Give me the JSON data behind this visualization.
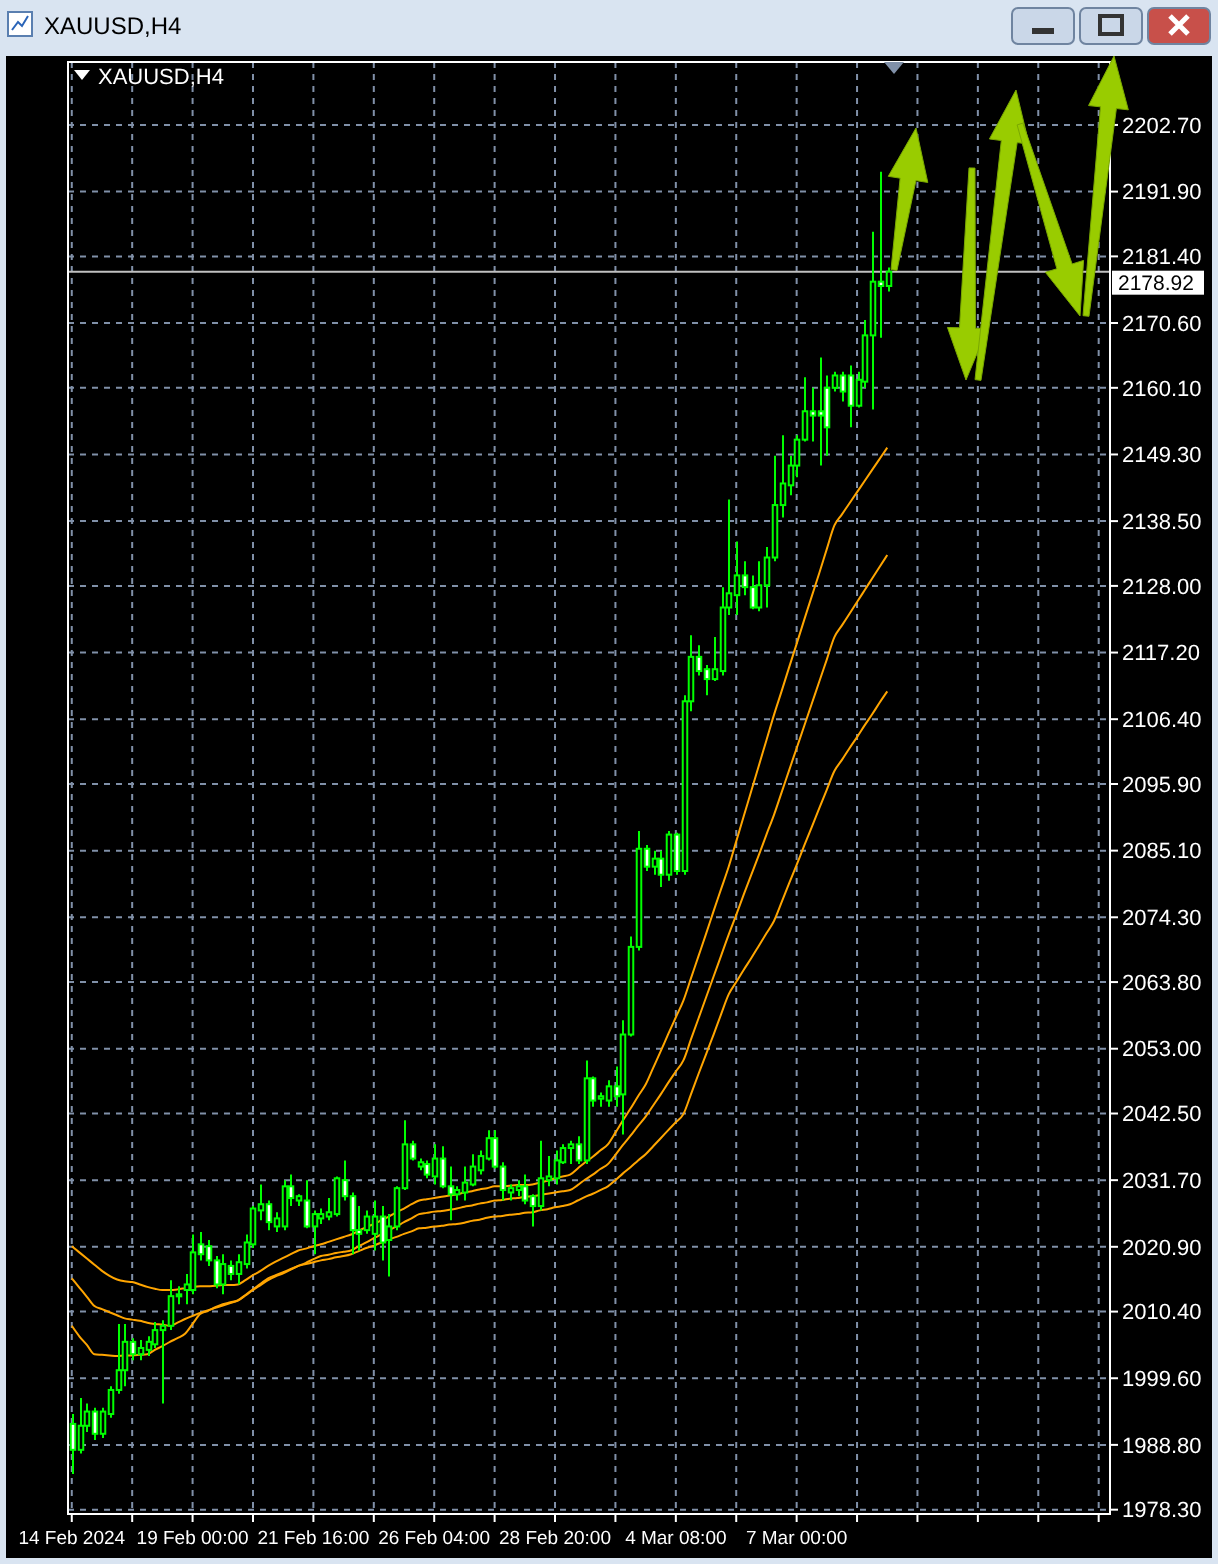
{
  "chart_data": {
    "type": "candlestick",
    "title": "XAUUSD,H4",
    "color": "#00ff00",
    "grid": true,
    "categories": [
      "14 Feb 2024",
      null,
      null,
      null,
      null,
      null,
      null,
      null,
      null,
      null,
      null,
      null,
      null,
      null,
      null,
      null,
      "19 Feb 00:00",
      null,
      null,
      null,
      null,
      null,
      null,
      null,
      null,
      null,
      null,
      null,
      null,
      null,
      null,
      null,
      "21 Feb 16:00",
      null,
      null,
      null,
      null,
      null,
      null,
      null,
      null,
      null,
      null,
      null,
      null,
      null,
      null,
      null,
      "26 Feb 04:00",
      null,
      null,
      null,
      null,
      null,
      null,
      null,
      null,
      null,
      null,
      null,
      null,
      null,
      null,
      null,
      "28 Feb 20:00",
      null,
      null,
      null,
      null,
      null,
      null,
      null,
      null,
      null,
      null,
      null,
      null,
      null,
      null,
      null,
      "4 Mar 08:00",
      null,
      null,
      null,
      null,
      null,
      null,
      null,
      null,
      null,
      null,
      null,
      null,
      null,
      null,
      null,
      "7 Mar 00:00",
      null,
      null,
      null,
      null,
      null,
      null,
      null,
      null,
      null,
      null,
      null,
      null
    ],
    "ylim": [
      1977.6,
      2212.9
    ],
    "yticks": [
      {
        "value": 1978.3,
        "label": "1978.30"
      },
      {
        "value": 1988.8,
        "label": "1988.80"
      },
      {
        "value": 1999.6,
        "label": "1999.60"
      },
      {
        "value": 2010.4,
        "label": "2010.40"
      },
      {
        "value": 2020.9,
        "label": "2020.90"
      },
      {
        "value": 2031.7,
        "label": "2031.70"
      },
      {
        "value": 2042.5,
        "label": "2042.50"
      },
      {
        "value": 2053,
        "label": "2053.00"
      },
      {
        "value": 2063.8,
        "label": "2063.80"
      },
      {
        "value": 2074.3,
        "label": "2074.30"
      },
      {
        "value": 2085.1,
        "label": "2085.10"
      },
      {
        "value": 2095.9,
        "label": "2095.90"
      },
      {
        "value": 2106.4,
        "label": "2106.40"
      },
      {
        "value": 2117.2,
        "label": "2117.20"
      },
      {
        "value": 2128,
        "label": "2128.00"
      },
      {
        "value": 2138.5,
        "label": "2138.50"
      },
      {
        "value": 2149.3,
        "label": "2149.30"
      },
      {
        "value": 2160.1,
        "label": "2160.10"
      },
      {
        "value": 2170.6,
        "label": "2170.60"
      },
      {
        "value": 2181.4,
        "label": "2181.40"
      },
      {
        "value": 2191.9,
        "label": "2191.90"
      },
      {
        "value": 2202.7,
        "label": "2202.70"
      }
    ],
    "ref_lines": [
      {
        "axis": "y",
        "value": 2178.92,
        "label": "2178.92",
        "color": "#c0c0c0"
      }
    ],
    "ohlc": [
      [
        1992.2,
        1993.8,
        1984.1,
        1988.0
      ],
      [
        1988.0,
        1996.4,
        1987.4,
        1991.9
      ],
      [
        1991.9,
        1995.5,
        1990.9,
        1994.2
      ],
      [
        1994.2,
        1994.8,
        1989.6,
        1990.6
      ],
      [
        1990.6,
        1994.8,
        1989.9,
        1994.2
      ],
      [
        1993.8,
        1998.3,
        1993.2,
        1997.7
      ],
      [
        1997.7,
        2008.4,
        1997.1,
        2000.9
      ],
      [
        2000.9,
        2008.4,
        1998.3,
        2005.5
      ],
      [
        2005.5,
        2006.1,
        2002.5,
        2003.5
      ],
      [
        2003.5,
        2005.8,
        2002.5,
        2004.5
      ],
      [
        2004.2,
        2006.4,
        2003.2,
        2005.5
      ],
      [
        2005.1,
        2008.7,
        2004.5,
        2007.4
      ],
      [
        2007.4,
        2009.0,
        1995.5,
        2008.1
      ],
      [
        2008.1,
        2015.5,
        2007.4,
        2012.9
      ],
      [
        2012.9,
        2014.5,
        2011.6,
        2013.2
      ],
      [
        2013.9,
        2016.5,
        2011.6,
        2014.8
      ],
      [
        2013.9,
        2022.9,
        2013.2,
        2020.0
      ],
      [
        2021.3,
        2023.3,
        2018.7,
        2019.7
      ],
      [
        2021.0,
        2022.0,
        2017.8,
        2018.7
      ],
      [
        2018.7,
        2019.4,
        2014.2,
        2014.8
      ],
      [
        2014.8,
        2019.7,
        2013.2,
        2018.1
      ],
      [
        2017.8,
        2018.7,
        2015.5,
        2016.5
      ],
      [
        2016.5,
        2019.7,
        2014.8,
        2018.4
      ],
      [
        2018.1,
        2022.9,
        2017.4,
        2021.6
      ],
      [
        2021.3,
        2027.5,
        2020.7,
        2027.1
      ],
      [
        2026.8,
        2031.0,
        2025.2,
        2027.8
      ],
      [
        2027.8,
        2028.4,
        2023.6,
        2024.9
      ],
      [
        2024.2,
        2026.5,
        2023.3,
        2025.5
      ],
      [
        2024.2,
        2031.7,
        2023.6,
        2030.7
      ],
      [
        2030.7,
        2032.6,
        2027.5,
        2028.8
      ],
      [
        2028.4,
        2029.4,
        2027.5,
        2029.1
      ],
      [
        2028.4,
        2031.7,
        2023.9,
        2024.2
      ],
      [
        2024.2,
        2026.8,
        2019.7,
        2026.2
      ],
      [
        2025.5,
        2027.1,
        2024.6,
        2026.2
      ],
      [
        2025.8,
        2028.8,
        2025.2,
        2026.5
      ],
      [
        2026.2,
        2032.3,
        2025.8,
        2032.0
      ],
      [
        2031.7,
        2034.9,
        2028.4,
        2029.1
      ],
      [
        2029.1,
        2029.7,
        2019.7,
        2023.6
      ],
      [
        2023.6,
        2027.5,
        2020.3,
        2023.0
      ],
      [
        2023.6,
        2026.8,
        2023.0,
        2025.8
      ],
      [
        2023.0,
        2028.4,
        2020.3,
        2025.8
      ],
      [
        2025.8,
        2027.5,
        2018.7,
        2021.6
      ],
      [
        2022.0,
        2026.2,
        2016.1,
        2024.2
      ],
      [
        2024.2,
        2030.7,
        2023.6,
        2030.4
      ],
      [
        2030.4,
        2041.4,
        2030.1,
        2037.5
      ],
      [
        2037.5,
        2038.1,
        2034.9,
        2035.2
      ],
      [
        2033.9,
        2035.2,
        2033.3,
        2034.6
      ],
      [
        2034.3,
        2034.9,
        2032.0,
        2032.6
      ],
      [
        2032.3,
        2037.5,
        2031.0,
        2035.2
      ],
      [
        2035.2,
        2037.2,
        2030.4,
        2030.7
      ],
      [
        2030.7,
        2033.9,
        2025.2,
        2029.4
      ],
      [
        2029.4,
        2030.7,
        2028.4,
        2030.1
      ],
      [
        2029.7,
        2033.9,
        2028.4,
        2031.3
      ],
      [
        2031.0,
        2035.9,
        2030.7,
        2033.9
      ],
      [
        2033.3,
        2036.5,
        2032.6,
        2035.6
      ],
      [
        2035.2,
        2039.8,
        2034.9,
        2038.5
      ],
      [
        2038.5,
        2039.8,
        2033.6,
        2033.9
      ],
      [
        2033.9,
        2034.6,
        2028.4,
        2030.1
      ],
      [
        2029.7,
        2031.0,
        2028.4,
        2030.4
      ],
      [
        2030.1,
        2031.7,
        2029.1,
        2030.7
      ],
      [
        2030.7,
        2032.6,
        2027.8,
        2028.4
      ],
      [
        2029.1,
        2029.4,
        2024.2,
        2027.5
      ],
      [
        2027.5,
        2038.1,
        2026.8,
        2032.0
      ],
      [
        2031.7,
        2035.6,
        2030.7,
        2032.3
      ],
      [
        2032.0,
        2036.5,
        2031.0,
        2034.9
      ],
      [
        2034.6,
        2037.5,
        2034.3,
        2036.9
      ],
      [
        2036.9,
        2038.1,
        2034.3,
        2037.5
      ],
      [
        2037.5,
        2038.8,
        2034.3,
        2034.9
      ],
      [
        2034.9,
        2051.1,
        2034.3,
        2048.2
      ],
      [
        2048.2,
        2048.5,
        2043.6,
        2044.6
      ],
      [
        2044.9,
        2045.9,
        2043.6,
        2045.3
      ],
      [
        2044.6,
        2047.9,
        2043.6,
        2046.9
      ],
      [
        2046.9,
        2050.1,
        2043.6,
        2045.3
      ],
      [
        2045.6,
        2057.6,
        2039.1,
        2055.3
      ],
      [
        2055.3,
        2071.2,
        2055.0,
        2069.5
      ],
      [
        2069.5,
        2088.3,
        2068.9,
        2085.4
      ],
      [
        2085.4,
        2086.0,
        2081.8,
        2082.5
      ],
      [
        2082.5,
        2085.1,
        2081.2,
        2083.8
      ],
      [
        2083.8,
        2085.1,
        2079.2,
        2081.2
      ],
      [
        2081.2,
        2088.3,
        2080.2,
        2087.7
      ],
      [
        2087.7,
        2088.0,
        2081.2,
        2081.8
      ],
      [
        2081.8,
        2110.3,
        2081.2,
        2109.3
      ],
      [
        2109.3,
        2120.0,
        2107.7,
        2116.5
      ],
      [
        2116.5,
        2118.4,
        2113.5,
        2114.2
      ],
      [
        2114.5,
        2115.2,
        2110.3,
        2112.9
      ],
      [
        2112.9,
        2119.7,
        2112.6,
        2114.5
      ],
      [
        2114.2,
        2127.8,
        2113.5,
        2124.5
      ],
      [
        2124.5,
        2142.0,
        2123.3,
        2126.8
      ],
      [
        2126.5,
        2135.2,
        2123.3,
        2129.7
      ],
      [
        2129.7,
        2132.0,
        2126.5,
        2127.8
      ],
      [
        2127.8,
        2129.7,
        2124.2,
        2124.5
      ],
      [
        2124.5,
        2132.0,
        2123.9,
        2128.1
      ],
      [
        2128.1,
        2134.3,
        2124.5,
        2132.6
      ],
      [
        2132.6,
        2149.1,
        2132.0,
        2141.1
      ],
      [
        2141.1,
        2152.4,
        2139.1,
        2144.6
      ],
      [
        2144.3,
        2149.1,
        2142.7,
        2147.5
      ],
      [
        2147.5,
        2152.4,
        2145.6,
        2151.7
      ],
      [
        2151.7,
        2161.8,
        2151.4,
        2156.3
      ],
      [
        2156.3,
        2160.1,
        2151.4,
        2155.6
      ],
      [
        2156.3,
        2165.0,
        2147.5,
        2155.6
      ],
      [
        2160.1,
        2162.1,
        2149.1,
        2153.7
      ],
      [
        2160.1,
        2162.7,
        2159.5,
        2162.1
      ],
      [
        2162.1,
        2162.7,
        2157.9,
        2159.5
      ],
      [
        2162.1,
        2163.7,
        2153.7,
        2157.2
      ],
      [
        2157.2,
        2162.7,
        2156.9,
        2161.4
      ],
      [
        2161.1,
        2171.1,
        2160.1,
        2168.6
      ],
      [
        2168.6,
        2185.4,
        2156.6,
        2177.3
      ],
      [
        2177.3,
        2195.1,
        2168.2,
        2176.6
      ],
      [
        2176.6,
        2179.6,
        2175.7,
        2178.92
      ]
    ],
    "series": [
      {
        "type": "line",
        "color": "#ffa500",
        "values": [
          2021.0,
          2020.0,
          2019.0,
          2018.0,
          2017.0,
          2016.2,
          2015.6,
          2015.3,
          2015.2,
          2014.8,
          2014.4,
          2014.1,
          2013.9,
          2013.9,
          2014.0,
          2014.2,
          2014.4,
          2014.5,
          2014.5,
          2014.6,
          2014.7,
          2014.7,
          2014.8,
          2015.5,
          2016.3,
          2017.0,
          2017.8,
          2018.5,
          2019.1,
          2019.7,
          2020.3,
          2020.6,
          2021.0,
          2021.3,
          2021.7,
          2022.1,
          2022.5,
          2022.9,
          2023.5,
          2024.1,
          2024.6,
          2025.2,
          2025.8,
          2026.5,
          2027.1,
          2027.8,
          2028.4,
          2028.6,
          2028.8,
          2029.0,
          2029.2,
          2029.4,
          2029.7,
          2029.9,
          2030.2,
          2030.4,
          2030.7,
          2030.7,
          2030.8,
          2030.9,
          2030.9,
          2031.0,
          2031.3,
          2031.6,
          2032.0,
          2032.3,
          2032.6,
          2033.6,
          2034.6,
          2035.5,
          2036.5,
          2037.5,
          2039.4,
          2041.4,
          2043.3,
          2045.3,
          2047.2,
          2049.9,
          2052.6,
          2055.4,
          2058.1,
          2060.8,
          2064.4,
          2068.0,
          2071.6,
          2075.3,
          2078.9,
          2082.5,
          2086.6,
          2090.7,
          2094.8,
          2098.9,
          2103.0,
          2107.1,
          2110.9,
          2114.8,
          2118.6,
          2122.5,
          2126.3,
          2130.1,
          2134.0,
          2137.8,
          2139.6,
          2141.4,
          2143.2,
          2145.0,
          2146.8,
          2148.6,
          2150.4
        ]
      },
      {
        "type": "line",
        "color": "#ffa500",
        "values": [
          2015.8,
          2014.3,
          2012.8,
          2011.3,
          2010.8,
          2010.3,
          2009.8,
          2009.3,
          2009.1,
          2008.9,
          2008.6,
          2008.4,
          2008.3,
          2008.1,
          2008.6,
          2009.2,
          2009.7,
          2010.2,
          2010.6,
          2011.0,
          2011.4,
          2011.8,
          2012.2,
          2013.1,
          2014.0,
          2014.9,
          2015.8,
          2016.3,
          2016.8,
          2017.3,
          2017.8,
          2018.3,
          2018.9,
          2019.4,
          2019.6,
          2019.9,
          2020.1,
          2020.3,
          2021.0,
          2021.6,
          2022.3,
          2022.9,
          2023.6,
          2024.2,
          2024.9,
          2025.5,
          2026.2,
          2026.4,
          2026.6,
          2026.7,
          2026.9,
          2027.1,
          2027.4,
          2027.6,
          2027.9,
          2028.1,
          2028.4,
          2028.5,
          2028.7,
          2028.8,
          2029.0,
          2029.1,
          2029.3,
          2029.5,
          2029.7,
          2029.9,
          2030.1,
          2030.9,
          2031.8,
          2032.6,
          2033.5,
          2034.3,
          2035.8,
          2037.4,
          2038.9,
          2040.5,
          2042.0,
          2043.8,
          2045.6,
          2047.5,
          2049.3,
          2051.1,
          2054.5,
          2057.9,
          2061.3,
          2064.7,
          2068.1,
          2071.5,
          2074.7,
          2078.0,
          2081.2,
          2084.4,
          2087.7,
          2090.9,
          2094.5,
          2098.1,
          2101.7,
          2105.3,
          2108.9,
          2112.5,
          2116.1,
          2119.7,
          2121.6,
          2123.5,
          2125.4,
          2127.3,
          2129.2,
          2131.1,
          2133.0
        ]
      },
      {
        "type": "line",
        "color": "#ffa500",
        "values": [
          2008.1,
          2006.4,
          2005.0,
          2003.5,
          2003.4,
          2003.3,
          2003.2,
          2003.3,
          2003.3,
          2003.4,
          2003.5,
          2004.2,
          2004.8,
          2005.5,
          2006.1,
          2006.8,
          2008.4,
          2010.0,
          2010.5,
          2011.1,
          2011.6,
          2011.9,
          2012.2,
          2013.0,
          2013.9,
          2014.7,
          2015.5,
          2016.1,
          2016.6,
          2017.2,
          2017.8,
          2018.1,
          2018.4,
          2018.7,
          2018.9,
          2019.2,
          2019.4,
          2019.7,
          2020.2,
          2020.7,
          2021.1,
          2021.6,
          2022.1,
          2022.5,
          2023.0,
          2023.4,
          2023.9,
          2024.0,
          2024.2,
          2024.3,
          2024.5,
          2024.6,
          2024.8,
          2025.1,
          2025.3,
          2025.6,
          2025.8,
          2025.9,
          2026.1,
          2026.2,
          2026.4,
          2026.5,
          2026.8,
          2027.0,
          2027.3,
          2027.5,
          2027.8,
          2028.4,
          2029.0,
          2029.5,
          2030.1,
          2030.7,
          2031.7,
          2032.8,
          2033.8,
          2034.9,
          2035.9,
          2037.2,
          2038.5,
          2039.8,
          2041.1,
          2042.4,
          2045.6,
          2048.9,
          2052.1,
          2055.3,
          2058.6,
          2061.8,
          2063.8,
          2065.8,
          2067.7,
          2069.7,
          2071.7,
          2073.7,
          2076.7,
          2079.8,
          2082.8,
          2085.9,
          2088.9,
          2092.0,
          2095.0,
          2098.0,
          2099.8,
          2101.7,
          2103.5,
          2105.4,
          2107.2,
          2109.1,
          2110.9
        ]
      }
    ]
  }
}
